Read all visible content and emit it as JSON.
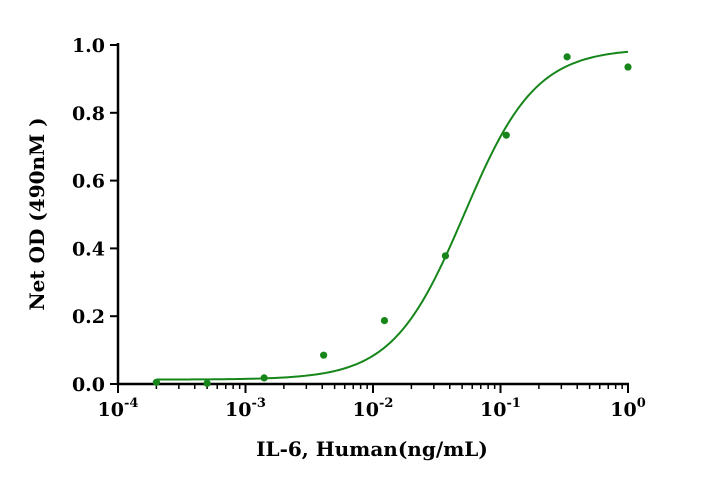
{
  "chart_data": {
    "type": "scatter",
    "xlabel": "IL-6, Human(ng/mL)",
    "ylabel": "Net OD (490nM )",
    "x_scale": "log",
    "xlim": [
      0.0001,
      1
    ],
    "ylim": [
      0,
      1
    ],
    "x_ticks": [
      {
        "base": "10",
        "exp": "-4",
        "value": 0.0001
      },
      {
        "base": "10",
        "exp": "-3",
        "value": 0.001
      },
      {
        "base": "10",
        "exp": "-2",
        "value": 0.01
      },
      {
        "base": "10",
        "exp": "-1",
        "value": 0.1
      },
      {
        "base": "10",
        "exp": "0",
        "value": 1
      }
    ],
    "y_ticks": [
      "0.0",
      "0.2",
      "0.4",
      "0.6",
      "0.8",
      "1.0"
    ],
    "grid": false,
    "series": [
      {
        "color": "#17861a",
        "points": [
          {
            "x": 0.0002,
            "y": 0.005
          },
          {
            "x": 0.0005,
            "y": 0.002
          },
          {
            "x": 0.0014,
            "y": 0.018
          },
          {
            "x": 0.0041,
            "y": 0.085
          },
          {
            "x": 0.0123,
            "y": 0.187
          },
          {
            "x": 0.037,
            "y": 0.378
          },
          {
            "x": 0.111,
            "y": 0.734
          },
          {
            "x": 0.333,
            "y": 0.965
          },
          {
            "x": 1.0,
            "y": 0.935
          }
        ],
        "fit": {
          "model": "4PL",
          "bottom": 0.013,
          "top": 0.99,
          "ec50": 0.052,
          "hill": 1.55
        }
      }
    ]
  }
}
